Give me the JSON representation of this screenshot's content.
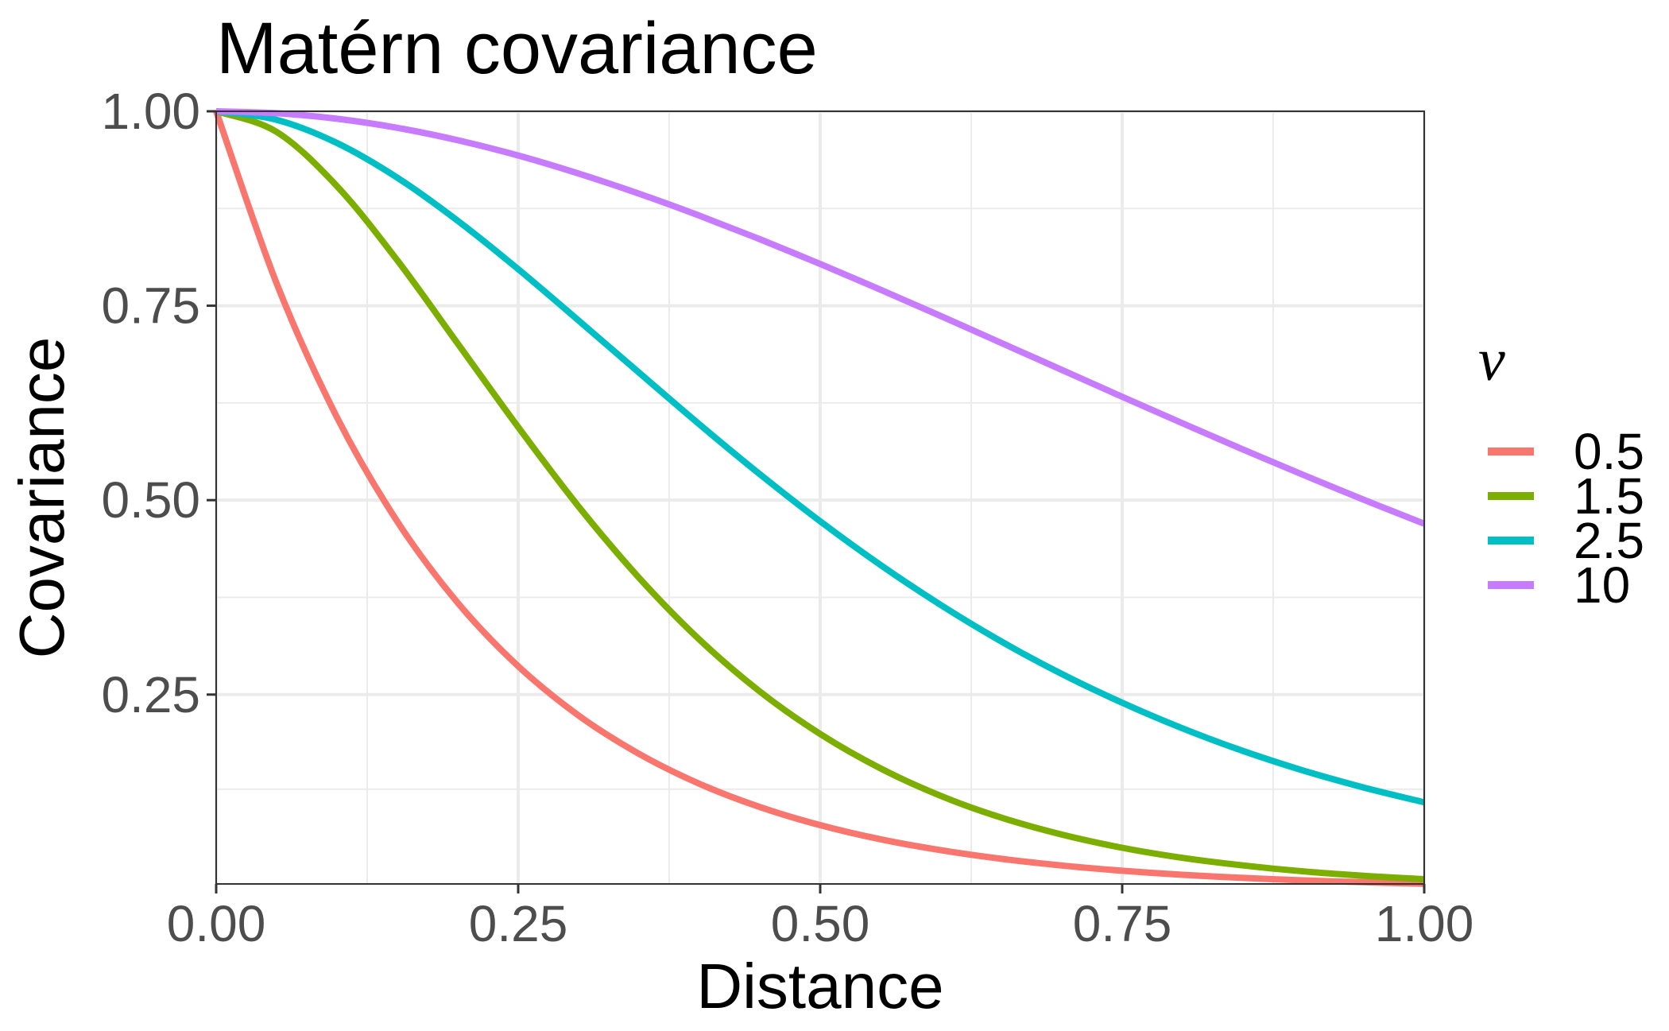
{
  "chart_data": {
    "type": "line",
    "title": "Matérn covariance",
    "xlabel": "Distance",
    "ylabel": "Covariance",
    "xlim": [
      0,
      1
    ],
    "ylim": [
      0.0065,
      1.0
    ],
    "x_ticks": [
      "0.00",
      "0.25",
      "0.50",
      "0.75",
      "1.00"
    ],
    "x_tick_values": [
      0,
      0.25,
      0.5,
      0.75,
      1.0
    ],
    "y_ticks": [
      "0.25",
      "0.50",
      "0.75",
      "1.00"
    ],
    "y_tick_values": [
      0.25,
      0.5,
      0.75,
      1.0
    ],
    "grid": true,
    "legend": {
      "title": "ν",
      "placement": "right"
    },
    "x": [
      0,
      0.05,
      0.1,
      0.15,
      0.2,
      0.25,
      0.3,
      0.35,
      0.4,
      0.45,
      0.5,
      0.55,
      0.6,
      0.65,
      0.7,
      0.75,
      0.8,
      0.85,
      0.9,
      0.95,
      1.0
    ],
    "series": [
      {
        "name": "0.5",
        "color": "#F8766D",
        "values": [
          1.0,
          0.7788,
          0.6065,
          0.4724,
          0.3679,
          0.2865,
          0.2231,
          0.1738,
          0.1353,
          0.1054,
          0.0821,
          0.0639,
          0.0498,
          0.0388,
          0.0302,
          0.0235,
          0.0183,
          0.0143,
          0.0111,
          0.0087,
          0.0067
        ]
      },
      {
        "name": "1.5",
        "color": "#7CAE00",
        "values": [
          1.0,
          0.9735,
          0.9037,
          0.8083,
          0.7012,
          0.5939,
          0.4918,
          0.4002,
          0.3207,
          0.254,
          0.1993,
          0.155,
          0.1196,
          0.0917,
          0.07,
          0.053,
          0.04,
          0.0303,
          0.0226,
          0.017,
          0.0126
        ]
      },
      {
        "name": "2.5",
        "color": "#00BFC4",
        "values": [
          1.0,
          0.9891,
          0.9592,
          0.9145,
          0.8592,
          0.797,
          0.731,
          0.664,
          0.5975,
          0.5334,
          0.4728,
          0.4166,
          0.365,
          0.3182,
          0.2765,
          0.2395,
          0.2065,
          0.1775,
          0.1523,
          0.1305,
          0.1115
        ]
      },
      {
        "name": "10",
        "color": "#C77CFF",
        "values": [
          1.0,
          0.9975,
          0.9904,
          0.9787,
          0.9628,
          0.9432,
          0.92,
          0.8941,
          0.8658,
          0.8355,
          0.8036,
          0.7705,
          0.7366,
          0.7021,
          0.6675,
          0.633,
          0.5988,
          0.5652,
          0.5324,
          0.5005,
          0.4697
        ]
      }
    ]
  }
}
